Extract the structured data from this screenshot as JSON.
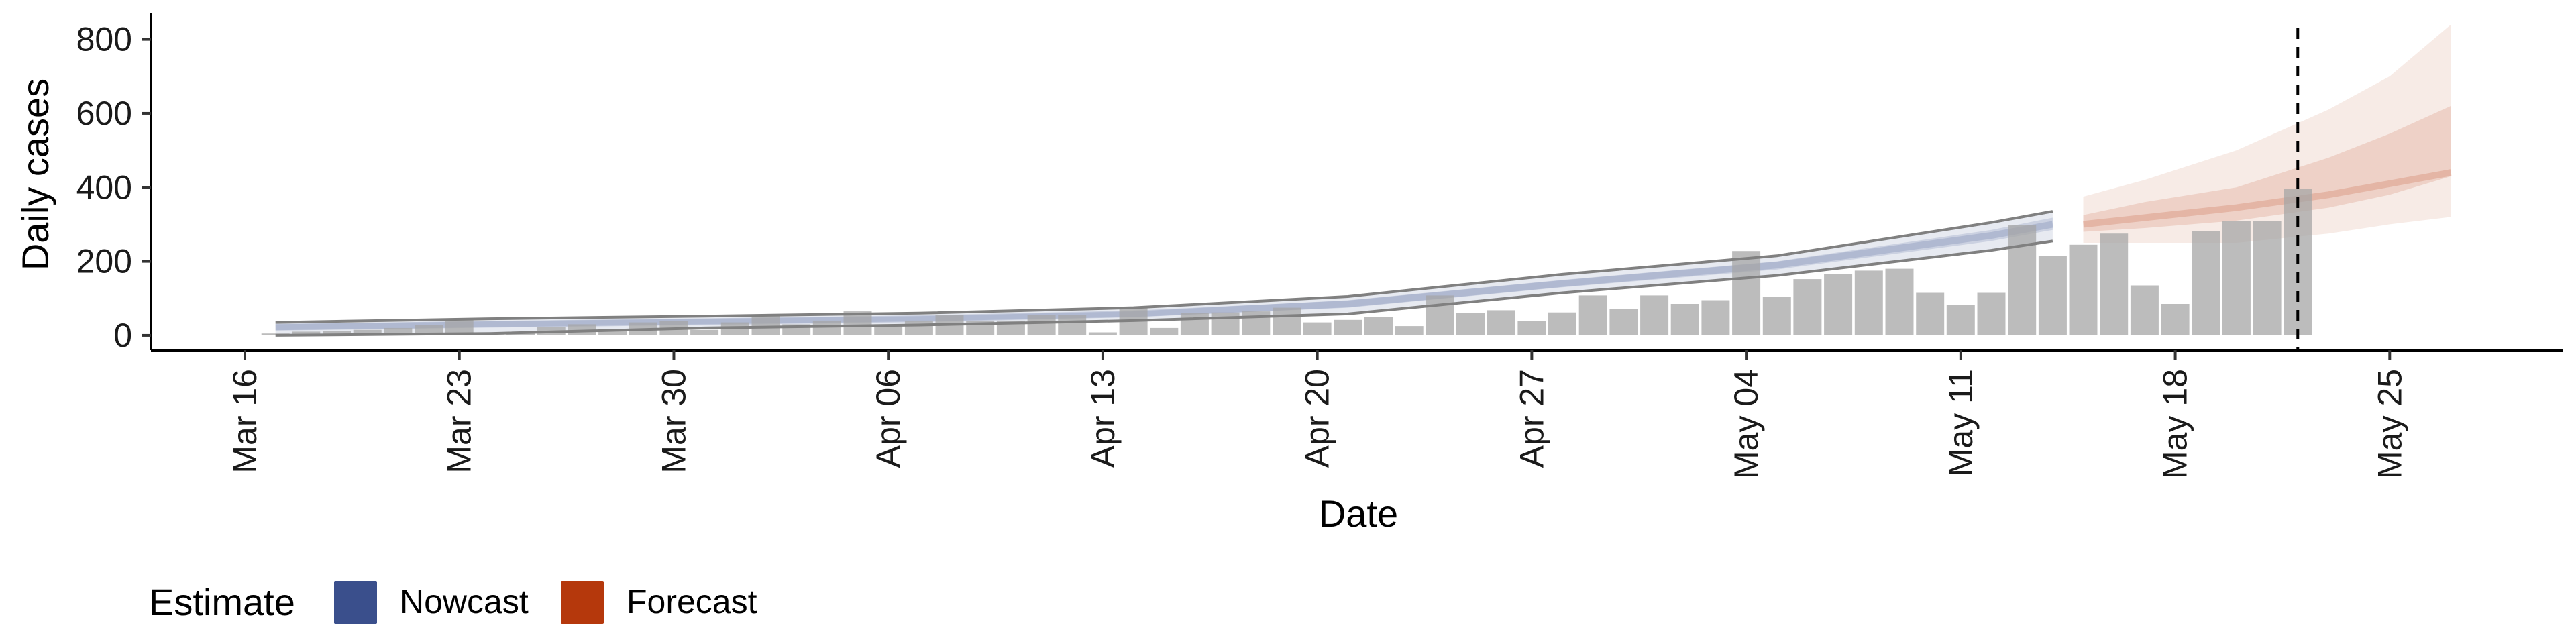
{
  "chart_data": {
    "type": "bar",
    "title": "",
    "xlabel": "Date",
    "ylabel": "Daily cases",
    "ylim": [
      -40,
      870
    ],
    "xlim": [
      "2020-03-16",
      "2020-05-29"
    ],
    "y_ticks": [
      0,
      200,
      400,
      600,
      800
    ],
    "x_ticks": [
      {
        "date": "2020-03-16",
        "label": "Mar 16"
      },
      {
        "date": "2020-03-23",
        "label": "Mar 23"
      },
      {
        "date": "2020-03-30",
        "label": "Mar 30"
      },
      {
        "date": "2020-04-06",
        "label": "Apr 06"
      },
      {
        "date": "2020-04-13",
        "label": "Apr 13"
      },
      {
        "date": "2020-04-20",
        "label": "Apr 20"
      },
      {
        "date": "2020-04-27",
        "label": "Apr 27"
      },
      {
        "date": "2020-05-04",
        "label": "May 04"
      },
      {
        "date": "2020-05-11",
        "label": "May 11"
      },
      {
        "date": "2020-05-18",
        "label": "May 18"
      },
      {
        "date": "2020-05-25",
        "label": "May 25"
      }
    ],
    "reported_cases": {
      "dates": [
        "2020-03-17",
        "2020-03-18",
        "2020-03-19",
        "2020-03-20",
        "2020-03-21",
        "2020-03-22",
        "2020-03-23",
        "2020-03-24",
        "2020-03-25",
        "2020-03-26",
        "2020-03-27",
        "2020-03-28",
        "2020-03-29",
        "2020-03-30",
        "2020-03-31",
        "2020-04-01",
        "2020-04-02",
        "2020-04-03",
        "2020-04-04",
        "2020-04-05",
        "2020-04-06",
        "2020-04-07",
        "2020-04-08",
        "2020-04-09",
        "2020-04-10",
        "2020-04-11",
        "2020-04-12",
        "2020-04-13",
        "2020-04-14",
        "2020-04-15",
        "2020-04-16",
        "2020-04-17",
        "2020-04-18",
        "2020-04-19",
        "2020-04-20",
        "2020-04-21",
        "2020-04-22",
        "2020-04-23",
        "2020-04-24",
        "2020-04-25",
        "2020-04-26",
        "2020-04-27",
        "2020-04-28",
        "2020-04-29",
        "2020-04-30",
        "2020-05-01",
        "2020-05-02",
        "2020-05-03",
        "2020-05-04",
        "2020-05-05",
        "2020-05-06",
        "2020-05-07",
        "2020-05-08",
        "2020-05-09",
        "2020-05-10",
        "2020-05-11",
        "2020-05-12",
        "2020-05-13",
        "2020-05-14",
        "2020-05-15",
        "2020-05-16",
        "2020-05-17",
        "2020-05-18",
        "2020-05-19",
        "2020-05-20",
        "2020-05-21",
        "2020-05-22"
      ],
      "values": [
        5,
        10,
        12,
        15,
        20,
        28,
        45,
        2,
        5,
        22,
        30,
        18,
        35,
        38,
        15,
        35,
        55,
        30,
        40,
        65,
        30,
        40,
        55,
        40,
        40,
        55,
        55,
        8,
        75,
        20,
        60,
        62,
        65,
        75,
        35,
        42,
        50,
        25,
        108,
        60,
        68,
        38,
        62,
        108,
        72,
        108,
        85,
        95,
        228,
        105,
        152,
        165,
        175,
        180,
        115,
        82,
        115,
        298,
        215,
        245,
        275,
        135,
        85,
        282,
        308,
        308,
        395
      ]
    },
    "series": [
      {
        "name": "Nowcast",
        "color": "#3a4f8c",
        "dates": [
          "2020-03-17",
          "2020-03-24",
          "2020-03-31",
          "2020-04-07",
          "2020-04-14",
          "2020-04-21",
          "2020-04-28",
          "2020-05-05",
          "2020-05-12",
          "2020-05-14"
        ],
        "outer_upper": [
          35,
          45,
          52,
          60,
          75,
          105,
          165,
          215,
          305,
          335
        ],
        "inner_upper": [
          30,
          38,
          45,
          52,
          65,
          95,
          150,
          200,
          285,
          318
        ],
        "median": [
          22,
          30,
          37,
          45,
          58,
          85,
          140,
          190,
          270,
          300
        ],
        "inner_lower": [
          14,
          22,
          30,
          38,
          50,
          75,
          130,
          178,
          255,
          285
        ],
        "outer_lower": [
          0,
          5,
          20,
          28,
          40,
          58,
          115,
          162,
          230,
          255
        ]
      },
      {
        "name": "Forecast",
        "color": "#b5380c",
        "dates": [
          "2020-05-15",
          "2020-05-17",
          "2020-05-20",
          "2020-05-23",
          "2020-05-25",
          "2020-05-27"
        ],
        "outer_upper": [
          375,
          420,
          500,
          610,
          700,
          840
        ],
        "inner_upper": [
          325,
          360,
          400,
          480,
          545,
          620
        ],
        "median": [
          300,
          318,
          345,
          380,
          410,
          440
        ],
        "inner_lower": [
          280,
          290,
          310,
          345,
          380,
          430
        ],
        "outer_lower": [
          250,
          250,
          250,
          275,
          300,
          320
        ]
      }
    ],
    "vline_date": "2020-05-22",
    "legend": {
      "title": "Estimate",
      "position": "bottom-left",
      "items": [
        {
          "label": "Nowcast",
          "color": "#3a4f8c"
        },
        {
          "label": "Forecast",
          "color": "#b5380c"
        }
      ]
    },
    "grid": false
  }
}
